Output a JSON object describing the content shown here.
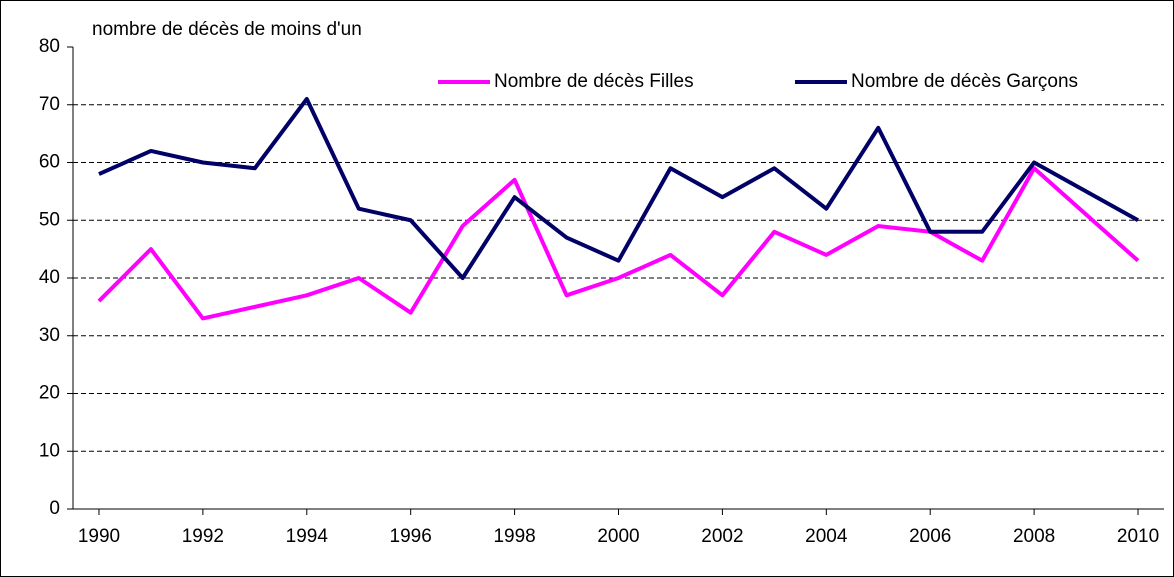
{
  "chart_data": {
    "type": "line",
    "y_label": "nombre de décès de moins d'un",
    "x": [
      1990,
      1991,
      1992,
      1993,
      1994,
      1995,
      1996,
      1997,
      1998,
      1999,
      2000,
      2001,
      2002,
      2003,
      2004,
      2005,
      2006,
      2007,
      2008,
      2009,
      2010
    ],
    "series": [
      {
        "name": "Nombre de décès Filles",
        "color": "#ff00ff",
        "values": [
          36,
          45,
          33,
          35,
          37,
          40,
          34,
          49,
          57,
          37,
          40,
          44,
          37,
          48,
          44,
          49,
          48,
          43,
          59,
          51,
          43
        ]
      },
      {
        "name": "Nombre de décès Garçons",
        "color": "#000066",
        "values": [
          58,
          62,
          60,
          59,
          71,
          52,
          50,
          40,
          54,
          47,
          43,
          59,
          54,
          59,
          52,
          66,
          48,
          48,
          60,
          55,
          50
        ]
      }
    ],
    "xlim": [
      1989.5,
      2010.5
    ],
    "xticks": [
      1990,
      1992,
      1994,
      1996,
      1998,
      2000,
      2002,
      2004,
      2006,
      2008,
      2010
    ],
    "ylim": [
      0,
      80
    ],
    "yticks": [
      0,
      10,
      20,
      30,
      40,
      50,
      60,
      70,
      80
    ],
    "grid": true,
    "legend": "top-right"
  }
}
